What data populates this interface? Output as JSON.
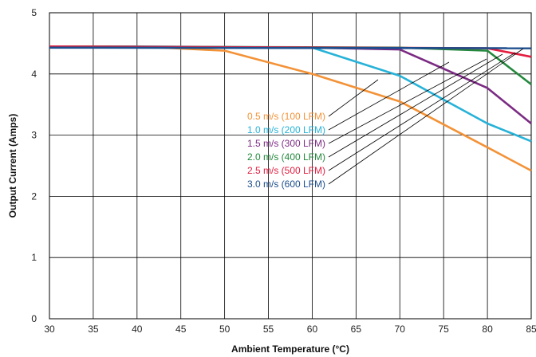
{
  "chart_data": {
    "type": "line",
    "title": "",
    "xlabel": "Ambient Temperature (°C)",
    "ylabel": "Output Current (Amps)",
    "xlim": [
      30,
      85
    ],
    "ylim": [
      0,
      5
    ],
    "xticks": [
      30,
      35,
      40,
      45,
      50,
      55,
      60,
      65,
      70,
      75,
      80,
      85
    ],
    "yticks": [
      0,
      1,
      2,
      3,
      4,
      5
    ],
    "grid": true,
    "legend_placement": "center-right, with leader lines",
    "series": [
      {
        "name": "0.5 m/s (100 LFM)",
        "color": "#f39237",
        "x": [
          30,
          40,
          50,
          60,
          70,
          80,
          85
        ],
        "y": [
          4.45,
          4.45,
          4.38,
          4.0,
          3.55,
          2.8,
          2.42
        ]
      },
      {
        "name": "1.0 m/s (200 LFM)",
        "color": "#27b2d8",
        "x": [
          30,
          40,
          50,
          60,
          70,
          80,
          85
        ],
        "y": [
          4.45,
          4.45,
          4.44,
          4.43,
          3.97,
          3.19,
          2.9
        ]
      },
      {
        "name": "1.5 m/s (300 LFM)",
        "color": "#7b2b83",
        "x": [
          30,
          60,
          70,
          80,
          85
        ],
        "y": [
          4.45,
          4.43,
          4.4,
          3.77,
          3.19
        ]
      },
      {
        "name": "2.0 m/s (400 LFM)",
        "color": "#23883c",
        "x": [
          30,
          70,
          80,
          85
        ],
        "y": [
          4.45,
          4.43,
          4.38,
          3.83
        ]
      },
      {
        "name": "2.5 m/s (500 LFM)",
        "color": "#e41d3f",
        "x": [
          30,
          80,
          85
        ],
        "y": [
          4.45,
          4.42,
          4.28
        ]
      },
      {
        "name": "3.0 m/s (600 LFM)",
        "color": "#1c4d8c",
        "x": [
          30,
          85
        ],
        "y": [
          4.43,
          4.42
        ]
      }
    ]
  }
}
